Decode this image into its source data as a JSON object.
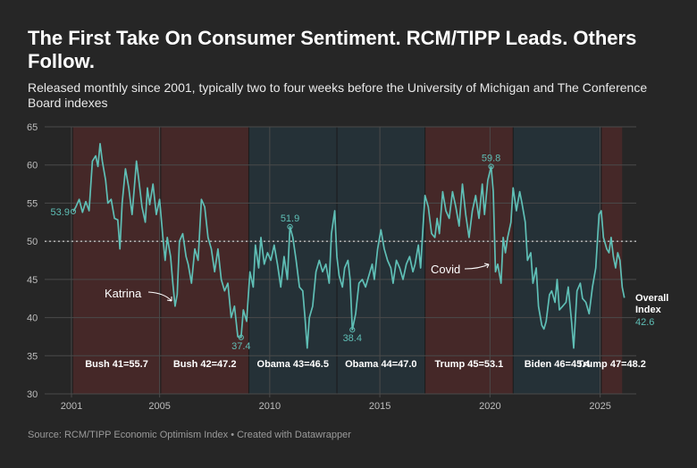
{
  "title": "The First Take On Consumer Sentiment. RCM/TIPP Leads. Others Follow.",
  "subtitle": "Released monthly since 2001, typically two to four weeks before the University of Michigan and The Conference Board indexes",
  "source": "Source: RCM/TIPP Economic Optimism Index • Created with Datawrapper",
  "chart_data": {
    "type": "line",
    "ylim": [
      30,
      65
    ],
    "xlim": [
      2000.6,
      2026.3
    ],
    "y_ticks": [
      "30",
      "35",
      "40",
      "45",
      "50",
      "55",
      "60",
      "65"
    ],
    "x_ticks": [
      "2001",
      "2005",
      "2010",
      "2015",
      "2020",
      "2025"
    ],
    "reference_line": 50,
    "line_color": "#5fbfb6",
    "presidencies": [
      {
        "label": "Bush 41=55.7",
        "start": 2001.05,
        "end": 2005.05,
        "color": "#8a2f2f"
      },
      {
        "label": "Bush 42=47.2",
        "start": 2005.05,
        "end": 2009.05,
        "color": "#8a2f2f"
      },
      {
        "label": "Obama 43=46.5",
        "start": 2009.05,
        "end": 2013.05,
        "color": "#244a5e"
      },
      {
        "label": "Obama 44=47.0",
        "start": 2013.05,
        "end": 2017.05,
        "color": "#244a5e"
      },
      {
        "label": "Trump 45=53.1",
        "start": 2017.05,
        "end": 2021.05,
        "color": "#8a2f2f"
      },
      {
        "label": "Biden 46=45.4",
        "start": 2021.05,
        "end": 2025.05,
        "color": "#244a5e"
      },
      {
        "label": "Trump 47=48.2",
        "start": 2025.05,
        "end": 2026.0,
        "color": "#8a2f2f"
      }
    ],
    "series": [
      {
        "points": [
          [
            2001.08,
            53.9
          ],
          [
            2001.2,
            54.5
          ],
          [
            2001.35,
            55.5
          ],
          [
            2001.5,
            53.8
          ],
          [
            2001.65,
            55.2
          ],
          [
            2001.8,
            54.0
          ],
          [
            2001.95,
            60.5
          ],
          [
            2002.1,
            61.2
          ],
          [
            2002.2,
            59.8
          ],
          [
            2002.3,
            62.8
          ],
          [
            2002.4,
            60.5
          ],
          [
            2002.55,
            58.0
          ],
          [
            2002.65,
            55.0
          ],
          [
            2002.8,
            55.5
          ],
          [
            2002.95,
            53.0
          ],
          [
            2003.1,
            52.8
          ],
          [
            2003.2,
            49.0
          ],
          [
            2003.3,
            55.0
          ],
          [
            2003.45,
            59.5
          ],
          [
            2003.6,
            57.0
          ],
          [
            2003.75,
            53.5
          ],
          [
            2003.85,
            57.0
          ],
          [
            2003.95,
            60.5
          ],
          [
            2004.05,
            58.2
          ],
          [
            2004.2,
            54.5
          ],
          [
            2004.35,
            52.5
          ],
          [
            2004.45,
            57.0
          ],
          [
            2004.55,
            54.8
          ],
          [
            2004.7,
            57.5
          ],
          [
            2004.85,
            53.5
          ],
          [
            2005.0,
            55.5
          ],
          [
            2005.15,
            50.5
          ],
          [
            2005.25,
            47.5
          ],
          [
            2005.35,
            50.5
          ],
          [
            2005.5,
            48.0
          ],
          [
            2005.6,
            44.5
          ],
          [
            2005.7,
            41.5
          ],
          [
            2005.8,
            43.0
          ],
          [
            2005.9,
            50.0
          ],
          [
            2006.05,
            51.0
          ],
          [
            2006.2,
            48.0
          ],
          [
            2006.3,
            47.0
          ],
          [
            2006.45,
            44.5
          ],
          [
            2006.6,
            49.0
          ],
          [
            2006.75,
            47.5
          ],
          [
            2006.9,
            55.5
          ],
          [
            2007.05,
            54.5
          ],
          [
            2007.2,
            50.5
          ],
          [
            2007.35,
            49.0
          ],
          [
            2007.5,
            46.0
          ],
          [
            2007.65,
            49.0
          ],
          [
            2007.8,
            45.0
          ],
          [
            2007.95,
            43.5
          ],
          [
            2008.1,
            44.5
          ],
          [
            2008.25,
            40.0
          ],
          [
            2008.4,
            41.5
          ],
          [
            2008.55,
            37.5
          ],
          [
            2008.7,
            37.4
          ],
          [
            2008.8,
            41.0
          ],
          [
            2008.95,
            39.5
          ],
          [
            2009.1,
            46.0
          ],
          [
            2009.25,
            44.0
          ],
          [
            2009.35,
            49.5
          ],
          [
            2009.5,
            46.5
          ],
          [
            2009.6,
            50.5
          ],
          [
            2009.75,
            47.0
          ],
          [
            2009.9,
            48.5
          ],
          [
            2010.05,
            47.5
          ],
          [
            2010.2,
            49.5
          ],
          [
            2010.35,
            47.0
          ],
          [
            2010.5,
            44.0
          ],
          [
            2010.65,
            48.0
          ],
          [
            2010.8,
            45.0
          ],
          [
            2010.92,
            51.9
          ],
          [
            2011.05,
            50.5
          ],
          [
            2011.2,
            47.5
          ],
          [
            2011.35,
            44.0
          ],
          [
            2011.5,
            43.5
          ],
          [
            2011.6,
            40.0
          ],
          [
            2011.7,
            36.0
          ],
          [
            2011.8,
            40.0
          ],
          [
            2011.95,
            41.5
          ],
          [
            2012.1,
            46.0
          ],
          [
            2012.25,
            47.5
          ],
          [
            2012.4,
            46.0
          ],
          [
            2012.55,
            47.0
          ],
          [
            2012.7,
            44.5
          ],
          [
            2012.8,
            51.0
          ],
          [
            2012.95,
            54.0
          ],
          [
            2013.05,
            48.0
          ],
          [
            2013.15,
            45.5
          ],
          [
            2013.3,
            44.0
          ],
          [
            2013.4,
            46.5
          ],
          [
            2013.55,
            47.5
          ],
          [
            2013.65,
            45.0
          ],
          [
            2013.75,
            38.4
          ],
          [
            2013.9,
            40.5
          ],
          [
            2014.05,
            44.5
          ],
          [
            2014.2,
            45.0
          ],
          [
            2014.35,
            44.0
          ],
          [
            2014.5,
            45.5
          ],
          [
            2014.65,
            47.0
          ],
          [
            2014.75,
            45.0
          ],
          [
            2014.9,
            49.0
          ],
          [
            2015.05,
            51.5
          ],
          [
            2015.2,
            49.0
          ],
          [
            2015.35,
            47.5
          ],
          [
            2015.5,
            46.5
          ],
          [
            2015.6,
            44.5
          ],
          [
            2015.75,
            47.5
          ],
          [
            2015.9,
            46.5
          ],
          [
            2016.05,
            45.0
          ],
          [
            2016.2,
            47.0
          ],
          [
            2016.35,
            48.0
          ],
          [
            2016.5,
            46.0
          ],
          [
            2016.6,
            47.0
          ],
          [
            2016.75,
            49.5
          ],
          [
            2016.85,
            46.5
          ],
          [
            2016.95,
            51.5
          ],
          [
            2017.05,
            56.0
          ],
          [
            2017.2,
            54.5
          ],
          [
            2017.35,
            51.0
          ],
          [
            2017.5,
            50.5
          ],
          [
            2017.6,
            53.0
          ],
          [
            2017.7,
            51.0
          ],
          [
            2017.85,
            56.5
          ],
          [
            2018.0,
            54.0
          ],
          [
            2018.15,
            53.0
          ],
          [
            2018.3,
            56.5
          ],
          [
            2018.45,
            54.5
          ],
          [
            2018.6,
            52.0
          ],
          [
            2018.75,
            57.5
          ],
          [
            2018.9,
            53.5
          ],
          [
            2019.05,
            50.5
          ],
          [
            2019.2,
            54.0
          ],
          [
            2019.35,
            56.0
          ],
          [
            2019.5,
            53.0
          ],
          [
            2019.65,
            57.5
          ],
          [
            2019.75,
            53.5
          ],
          [
            2019.9,
            58.0
          ],
          [
            2020.05,
            59.8
          ],
          [
            2020.15,
            56.5
          ],
          [
            2020.25,
            46.0
          ],
          [
            2020.35,
            47.0
          ],
          [
            2020.5,
            44.5
          ],
          [
            2020.6,
            50.5
          ],
          [
            2020.7,
            48.5
          ],
          [
            2020.8,
            50.5
          ],
          [
            2020.95,
            52.5
          ],
          [
            2021.05,
            57.0
          ],
          [
            2021.2,
            54.0
          ],
          [
            2021.35,
            56.5
          ],
          [
            2021.45,
            55.0
          ],
          [
            2021.6,
            52.5
          ],
          [
            2021.7,
            47.5
          ],
          [
            2021.85,
            48.5
          ],
          [
            2021.95,
            44.5
          ],
          [
            2022.1,
            46.5
          ],
          [
            2022.2,
            41.5
          ],
          [
            2022.35,
            39.0
          ],
          [
            2022.45,
            38.5
          ],
          [
            2022.55,
            39.5
          ],
          [
            2022.7,
            43.0
          ],
          [
            2022.8,
            43.5
          ],
          [
            2022.95,
            42.0
          ],
          [
            2023.05,
            45.0
          ],
          [
            2023.15,
            41.0
          ],
          [
            2023.3,
            41.5
          ],
          [
            2023.45,
            42.0
          ],
          [
            2023.55,
            44.0
          ],
          [
            2023.7,
            39.5
          ],
          [
            2023.8,
            36.0
          ],
          [
            2023.95,
            43.5
          ],
          [
            2024.1,
            44.5
          ],
          [
            2024.2,
            42.5
          ],
          [
            2024.35,
            42.0
          ],
          [
            2024.5,
            40.5
          ],
          [
            2024.65,
            44.0
          ],
          [
            2024.8,
            46.5
          ],
          [
            2024.95,
            53.5
          ],
          [
            2025.05,
            54.0
          ],
          [
            2025.15,
            50.5
          ],
          [
            2025.3,
            49.0
          ],
          [
            2025.4,
            48.5
          ],
          [
            2025.5,
            50.5
          ],
          [
            2025.6,
            48.0
          ],
          [
            2025.7,
            46.5
          ],
          [
            2025.8,
            48.5
          ],
          [
            2025.9,
            47.5
          ],
          [
            2026.0,
            44.0
          ],
          [
            2026.1,
            42.6
          ]
        ]
      }
    ],
    "point_labels": [
      {
        "text": "53.9",
        "x": 2001.08,
        "y": 53.9
      },
      {
        "text": "37.4",
        "x": 2008.7,
        "y": 37.4
      },
      {
        "text": "51.9",
        "x": 2010.92,
        "y": 51.9
      },
      {
        "text": "38.4",
        "x": 2013.75,
        "y": 38.4
      },
      {
        "text": "59.8",
        "x": 2020.05,
        "y": 59.8
      }
    ],
    "annotations": [
      {
        "text": "Katrina",
        "x": 2005.7,
        "y": 41.5
      },
      {
        "text": "Covid",
        "x": 2020.25,
        "y": 46.0
      }
    ],
    "end_label": {
      "line1": "Overall",
      "line2": "Index",
      "value": "42.6"
    }
  }
}
